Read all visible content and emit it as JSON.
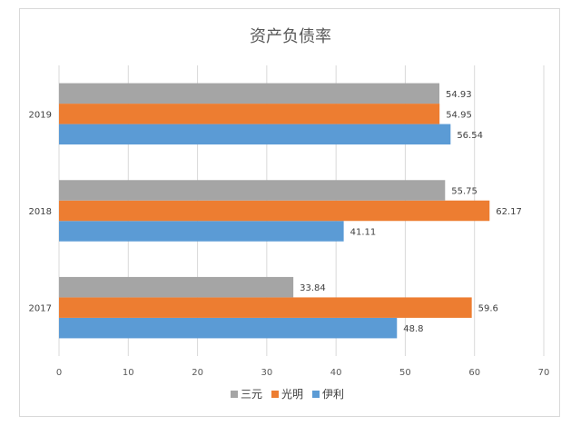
{
  "chart_data": {
    "type": "bar",
    "orientation": "horizontal",
    "title": "资产负债率",
    "categories": [
      "2017",
      "2018",
      "2019"
    ],
    "series": [
      {
        "name": "伊利",
        "color": "#5B9BD5",
        "values": [
          48.8,
          41.11,
          56.54
        ],
        "labels": [
          "48.8",
          "41.11",
          "56.54"
        ]
      },
      {
        "name": "光明",
        "color": "#ED7D31",
        "values": [
          59.6,
          62.17,
          54.95
        ],
        "labels": [
          "59.6",
          "62.17",
          "54.95"
        ]
      },
      {
        "name": "三元",
        "color": "#A5A5A5",
        "values": [
          33.84,
          55.75,
          54.93
        ],
        "labels": [
          "33.84",
          "55.75",
          "54.93"
        ]
      }
    ],
    "legend_order": [
      "三元",
      "光明",
      "伊利"
    ],
    "xlim": [
      0,
      70
    ],
    "xticks": [
      "0",
      "10",
      "20",
      "30",
      "40",
      "50",
      "60",
      "70"
    ],
    "grid": true,
    "legend_position": "bottom"
  }
}
